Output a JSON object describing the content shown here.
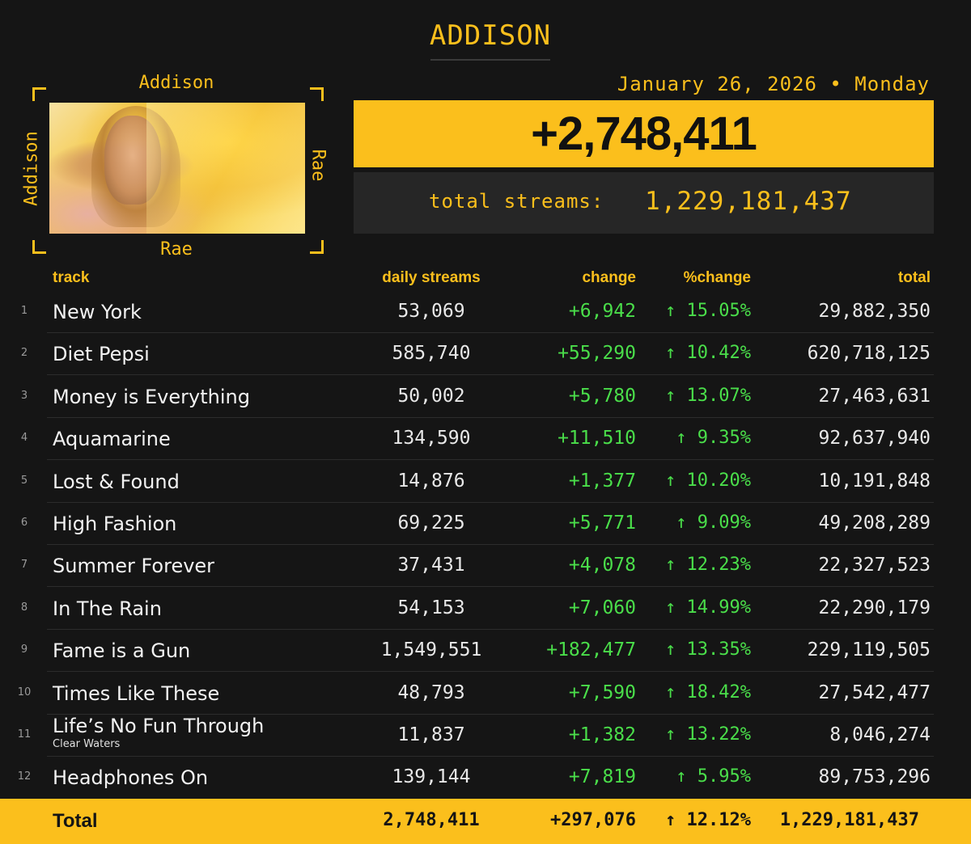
{
  "artist": "ADDISON",
  "frame": {
    "top": "Addison",
    "bottom": "Rae",
    "left": "Addison",
    "right": "Rae"
  },
  "date_line": "January 26, 2026 • Monday",
  "daily_total": "+2,748,411",
  "total_streams_label": "total streams:",
  "total_streams_value": "1,229,181,437",
  "columns": {
    "track": "track",
    "daily": "daily streams",
    "change": "change",
    "pct": "%change",
    "total": "total"
  },
  "tracks": [
    {
      "rank": "1",
      "name": "New York",
      "sub": "",
      "daily": "53,069",
      "change": "+6,942",
      "pct": "↑ 15.05%",
      "total": "29,882,350"
    },
    {
      "rank": "2",
      "name": "Diet Pepsi",
      "sub": "",
      "daily": "585,740",
      "change": "+55,290",
      "pct": "↑ 10.42%",
      "total": "620,718,125"
    },
    {
      "rank": "3",
      "name": "Money is Everything",
      "sub": "",
      "daily": "50,002",
      "change": "+5,780",
      "pct": "↑ 13.07%",
      "total": "27,463,631"
    },
    {
      "rank": "4",
      "name": "Aquamarine",
      "sub": "",
      "daily": "134,590",
      "change": "+11,510",
      "pct": "↑ 9.35%",
      "total": "92,637,940"
    },
    {
      "rank": "5",
      "name": "Lost & Found",
      "sub": "",
      "daily": "14,876",
      "change": "+1,377",
      "pct": "↑ 10.20%",
      "total": "10,191,848"
    },
    {
      "rank": "6",
      "name": "High Fashion",
      "sub": "",
      "daily": "69,225",
      "change": "+5,771",
      "pct": "↑ 9.09%",
      "total": "49,208,289"
    },
    {
      "rank": "7",
      "name": "Summer Forever",
      "sub": "",
      "daily": "37,431",
      "change": "+4,078",
      "pct": "↑ 12.23%",
      "total": "22,327,523"
    },
    {
      "rank": "8",
      "name": "In The Rain",
      "sub": "",
      "daily": "54,153",
      "change": "+7,060",
      "pct": "↑ 14.99%",
      "total": "22,290,179"
    },
    {
      "rank": "9",
      "name": "Fame is a Gun",
      "sub": "",
      "daily": "1,549,551",
      "change": "+182,477",
      "pct": "↑ 13.35%",
      "total": "229,119,505"
    },
    {
      "rank": "10",
      "name": "Times Like These",
      "sub": "",
      "daily": "48,793",
      "change": "+7,590",
      "pct": "↑ 18.42%",
      "total": "27,542,477"
    },
    {
      "rank": "11",
      "name": "Life’s No Fun Through",
      "sub": "Clear Waters",
      "daily": "11,837",
      "change": "+1,382",
      "pct": "↑ 13.22%",
      "total": "8,046,274"
    },
    {
      "rank": "12",
      "name": "Headphones On",
      "sub": "",
      "daily": "139,144",
      "change": "+7,819",
      "pct": "↑ 5.95%",
      "total": "89,753,296"
    }
  ],
  "totals": {
    "label": "Total",
    "daily": "2,748,411",
    "change": "+297,076",
    "pct": "↑ 12.12%",
    "total": "1,229,181,437"
  },
  "colors": {
    "accent": "#fbbf1c",
    "positive": "#4ade4a",
    "background": "#151515"
  }
}
